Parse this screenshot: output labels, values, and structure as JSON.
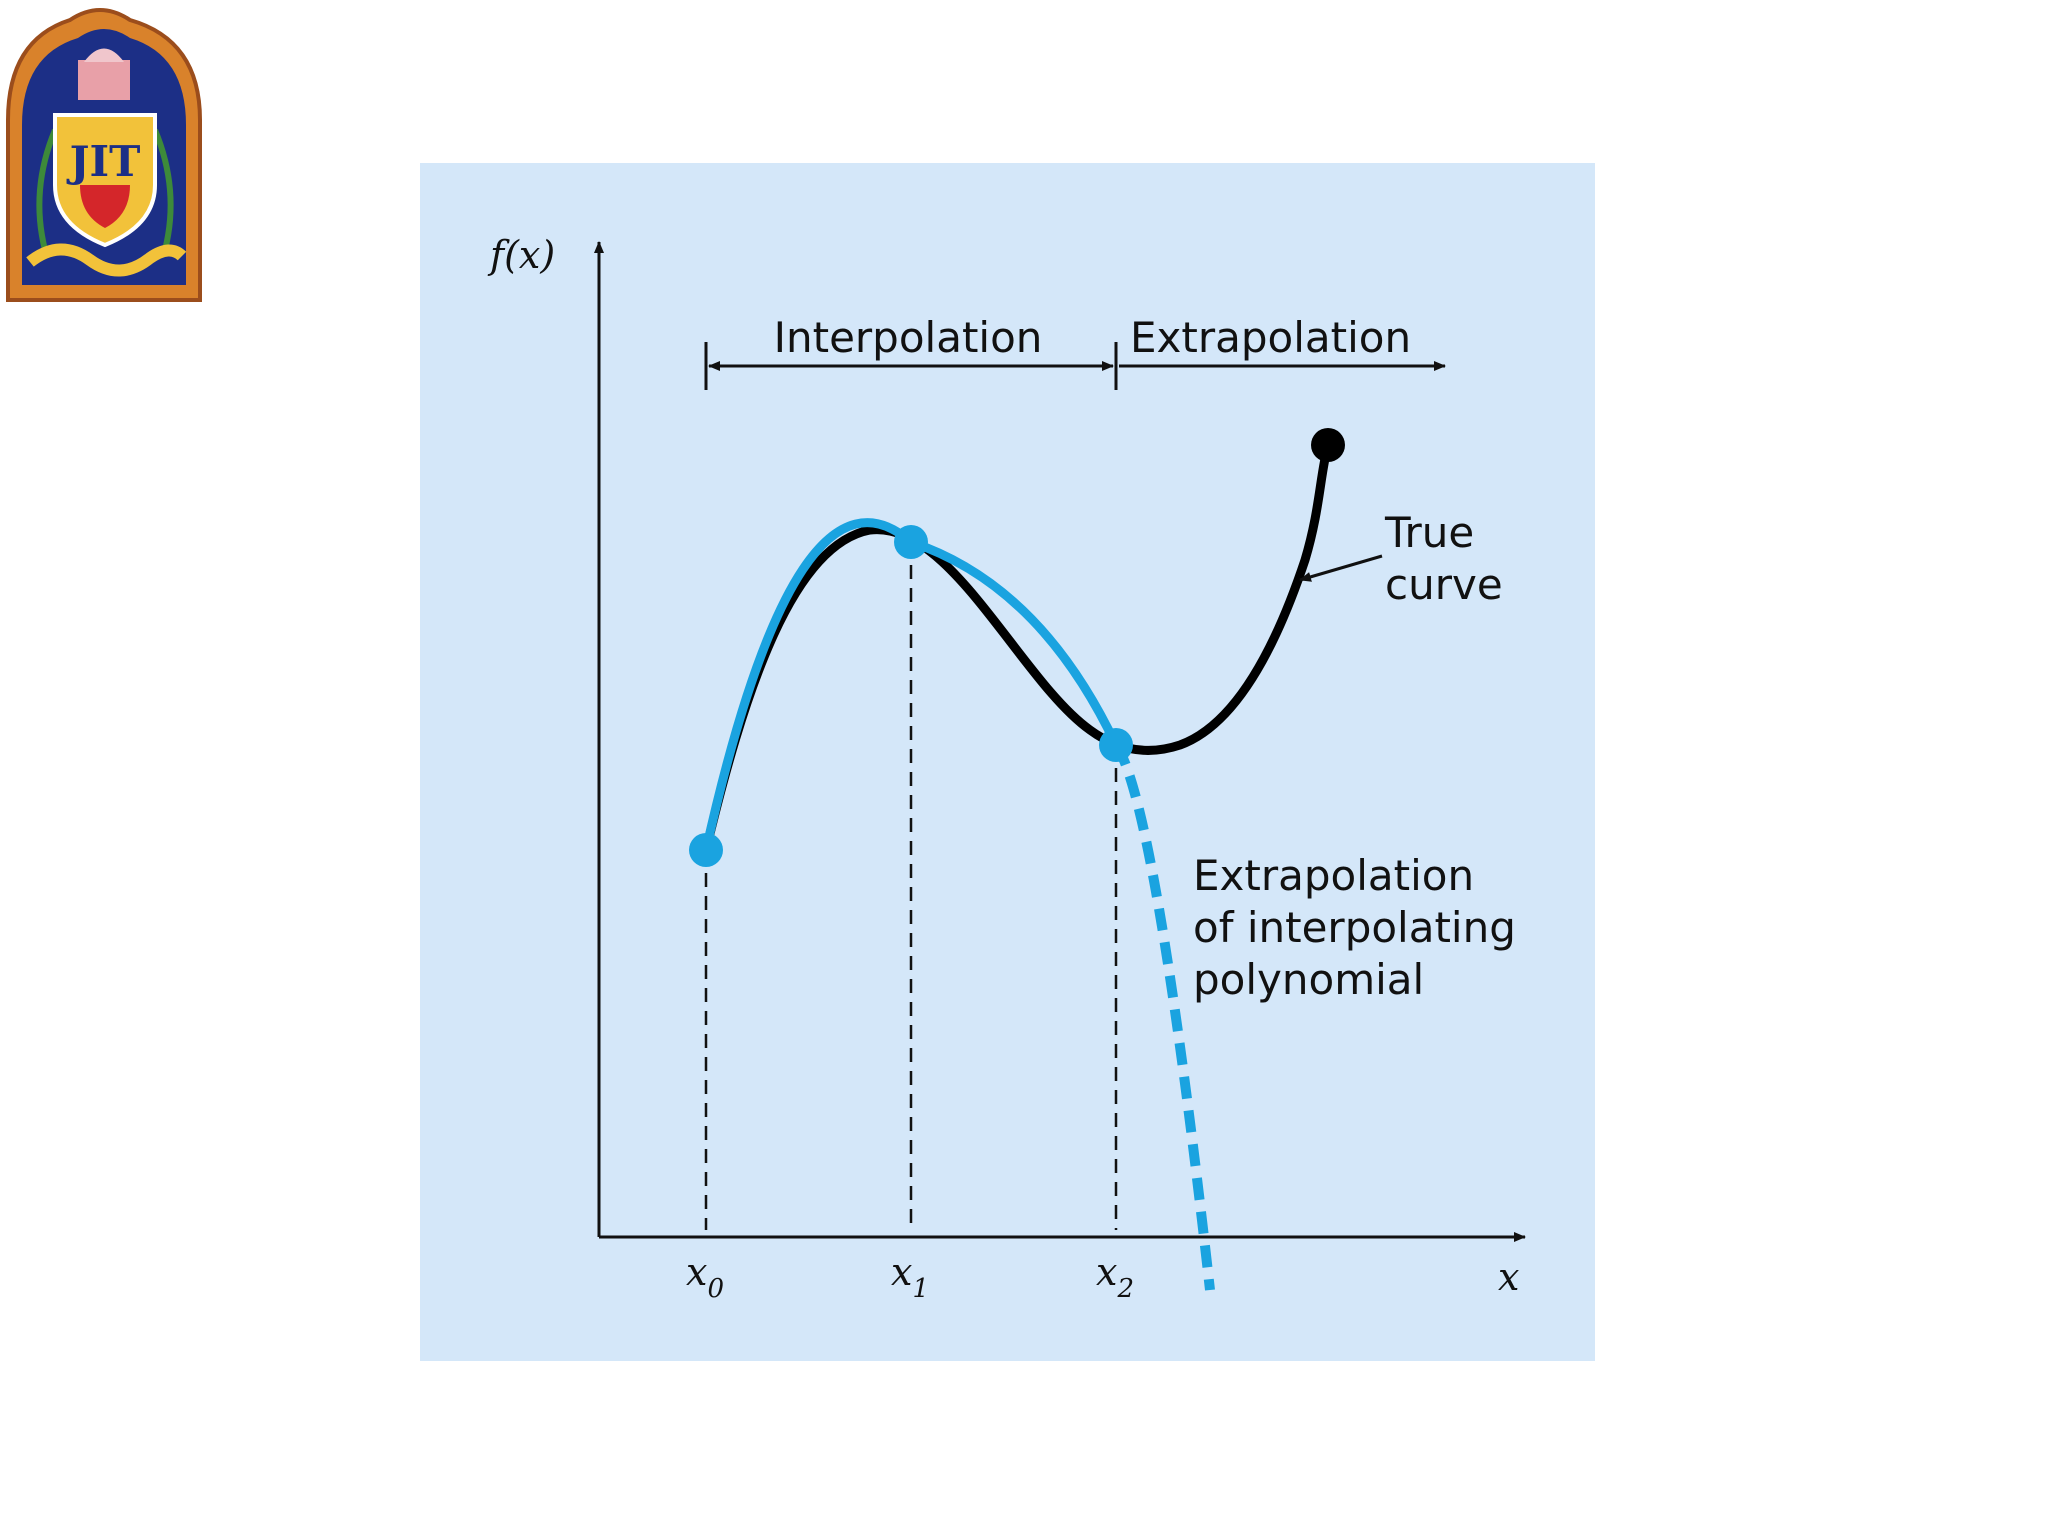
{
  "logo": {
    "text": "JIT",
    "colors": {
      "frame": "#d9822b",
      "field": "#1c2f86",
      "shield": "#f2c23a",
      "red": "#d4262a"
    }
  },
  "diagram": {
    "background": "#d4e7f9",
    "axis_y_label": "f(x)",
    "axis_x_label": "x",
    "x_ticks": [
      {
        "base": "x",
        "sub": "0"
      },
      {
        "base": "x",
        "sub": "1"
      },
      {
        "base": "x",
        "sub": "2"
      }
    ],
    "region_labels": {
      "interpolation": "Interpolation",
      "extrapolation": "Extrapolation"
    },
    "annotations": {
      "true_curve": [
        "True",
        "curve"
      ],
      "extrapolation_poly": [
        "Extrapolation",
        "of interpolating",
        "polynomial"
      ]
    },
    "colors": {
      "true_curve": "#000000",
      "polynomial": "#1aa3e0",
      "axis": "#111111"
    }
  }
}
